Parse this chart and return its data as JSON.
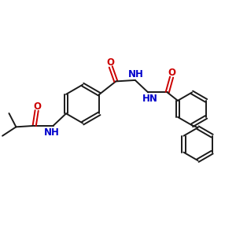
{
  "bg_color": "#ffffff",
  "bond_color": "#1a1a1a",
  "N_color": "#0000cc",
  "O_color": "#cc0000",
  "font_size": 8.5,
  "line_width": 1.4,
  "figsize": [
    3.0,
    3.0
  ],
  "dpi": 100,
  "xlim": [
    0,
    10
  ],
  "ylim": [
    0,
    10
  ]
}
